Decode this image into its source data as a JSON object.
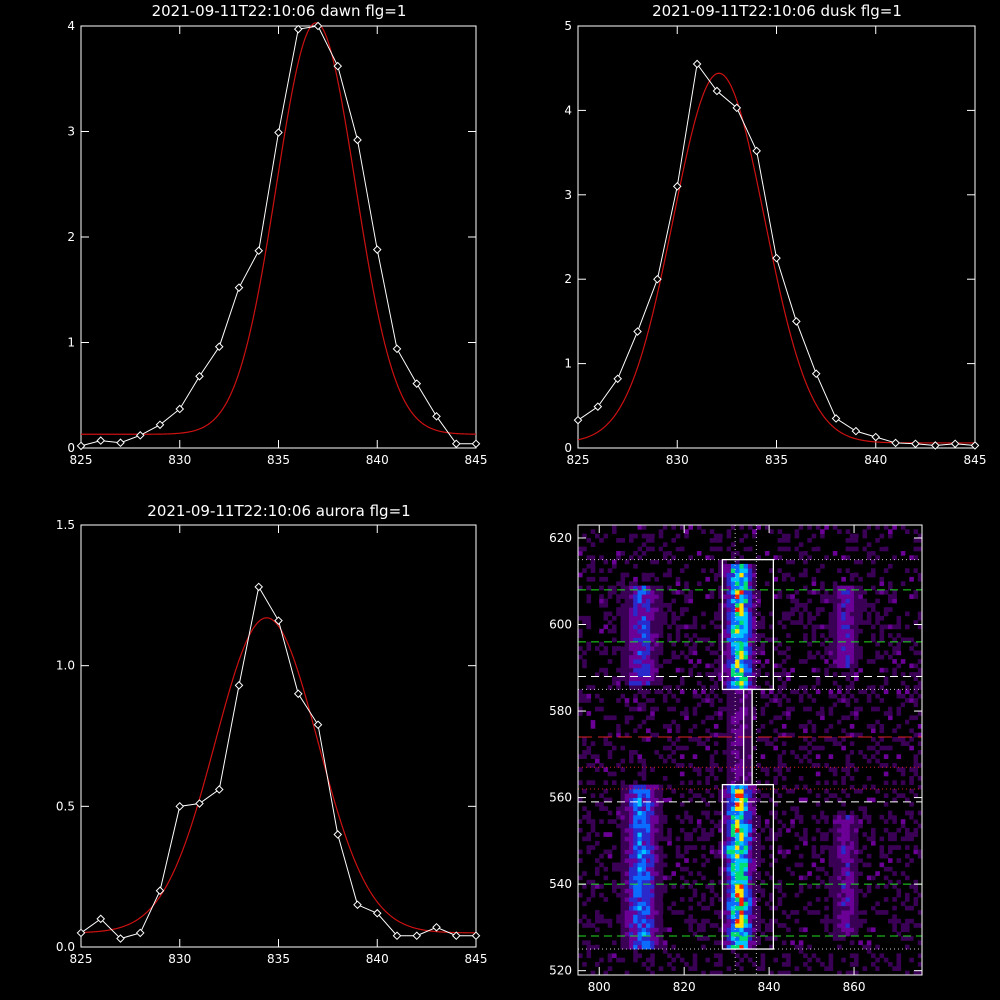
{
  "charts": [
    {
      "type": "line",
      "title": "2021-09-11T22:10:06 dawn flg=1",
      "xlim": [
        825,
        845
      ],
      "ylim": [
        0,
        4
      ],
      "xticks": [
        825,
        830,
        835,
        840,
        845
      ],
      "yticks": [
        0,
        1,
        2,
        3,
        4
      ],
      "ytick_labels": [
        "0",
        "1",
        "2",
        "3",
        "4"
      ],
      "series": [
        {
          "style": "data",
          "color": "#ffffff",
          "x": [
            825,
            826,
            827,
            828,
            829,
            830,
            831,
            832,
            833,
            834,
            835,
            836,
            837,
            838,
            839,
            840,
            841,
            842,
            843,
            844,
            845
          ],
          "y": [
            0.02,
            0.07,
            0.05,
            0.12,
            0.22,
            0.37,
            0.68,
            0.96,
            1.52,
            1.87,
            2.99,
            3.97,
            4.0,
            3.62,
            2.92,
            1.88,
            0.94,
            0.61,
            0.3,
            0.04,
            0.04
          ]
        },
        {
          "style": "fit",
          "color": "#cc1111",
          "model": "gauss",
          "A": 3.9,
          "mu": 836.9,
          "sigma": 2.0,
          "base": 0.13
        }
      ]
    },
    {
      "type": "line",
      "title": "2021-09-11T22:10:06 dusk flg=1",
      "xlim": [
        825,
        845
      ],
      "ylim": [
        0,
        5
      ],
      "xticks": [
        825,
        830,
        835,
        840,
        845
      ],
      "yticks": [
        0,
        1,
        2,
        3,
        4,
        5
      ],
      "ytick_labels": [
        "0",
        "1",
        "2",
        "3",
        "4",
        "5"
      ],
      "series": [
        {
          "style": "data",
          "color": "#ffffff",
          "x": [
            825,
            826,
            827,
            828,
            829,
            830,
            831,
            832,
            833,
            834,
            835,
            836,
            837,
            838,
            839,
            840,
            841,
            842,
            843,
            844,
            845
          ],
          "y": [
            0.33,
            0.49,
            0.82,
            1.38,
            2.0,
            3.1,
            4.55,
            4.23,
            4.03,
            3.52,
            2.25,
            1.5,
            0.88,
            0.35,
            0.2,
            0.13,
            0.06,
            0.05,
            0.03,
            0.05,
            0.03
          ]
        },
        {
          "style": "fit",
          "color": "#cc1111",
          "model": "gauss",
          "A": 4.38,
          "mu": 832.1,
          "sigma": 2.3,
          "base": 0.06
        }
      ]
    },
    {
      "type": "line",
      "title": "2021-09-11T22:10:06 aurora flg=1",
      "xlim": [
        825,
        845
      ],
      "ylim": [
        0,
        1.5
      ],
      "xticks": [
        825,
        830,
        835,
        840,
        845
      ],
      "yticks": [
        0,
        0.5,
        1.0,
        1.5
      ],
      "ytick_labels": [
        "0.0",
        "0.5",
        "1.0",
        "1.5"
      ],
      "series": [
        {
          "style": "data",
          "color": "#ffffff",
          "x": [
            825,
            826,
            827,
            828,
            829,
            830,
            831,
            832,
            833,
            834,
            835,
            836,
            837,
            838,
            839,
            840,
            841,
            842,
            843,
            844,
            845
          ],
          "y": [
            0.05,
            0.1,
            0.03,
            0.05,
            0.2,
            0.5,
            0.51,
            0.56,
            0.93,
            1.28,
            1.16,
            0.9,
            0.79,
            0.4,
            0.15,
            0.12,
            0.04,
            0.04,
            0.07,
            0.04,
            0.04
          ]
        },
        {
          "style": "fit",
          "color": "#cc1111",
          "model": "gauss",
          "A": 1.12,
          "mu": 834.4,
          "sigma": 2.6,
          "base": 0.05
        }
      ]
    },
    {
      "type": "heatmap",
      "xlim": [
        795,
        876
      ],
      "ylim": [
        519,
        623
      ],
      "xticks": [
        800,
        820,
        840,
        860
      ],
      "yticks": [
        520,
        540,
        560,
        580,
        600,
        620
      ],
      "colormap": [
        "#000000",
        "#3a0055",
        "#6a0096",
        "#2a2acc",
        "#0b6cff",
        "#00c4ff",
        "#00e070",
        "#ffe000",
        "#ff2000"
      ],
      "columns": [
        {
          "center": 810,
          "width": 5,
          "ranges": [
            [
              525,
              562,
              0.55
            ],
            [
              586,
              608,
              0.45
            ]
          ]
        },
        {
          "center": 833,
          "width": 4,
          "ranges": [
            [
              525,
              562,
              0.9
            ],
            [
              585,
              613,
              0.85
            ],
            [
              562,
              585,
              0.25
            ]
          ]
        },
        {
          "center": 858,
          "width": 4,
          "ranges": [
            [
              528,
              555,
              0.3
            ],
            [
              590,
              608,
              0.35
            ]
          ]
        }
      ],
      "hot_spots": [
        [
          833,
          538,
          1.0
        ],
        [
          834,
          601,
          0.75
        ],
        [
          831,
          548,
          0.82
        ]
      ],
      "boxes": [
        [
          829,
          585,
          841,
          615
        ],
        [
          829,
          525,
          841,
          563
        ],
        [
          834,
          563,
          836,
          585
        ]
      ],
      "h_lines": [
        {
          "y": 615,
          "color": "#cccccc",
          "dash": "1,3"
        },
        {
          "y": 608,
          "color": "#22dd22",
          "dash": "8,5"
        },
        {
          "y": 596,
          "color": "#22dd22",
          "dash": "8,5"
        },
        {
          "y": 588,
          "color": "#ffffff",
          "dash": "8,5"
        },
        {
          "y": 585,
          "color": "#cccccc",
          "dash": "1,3"
        },
        {
          "y": 574,
          "color": "#dd2222",
          "dash": "14,6"
        },
        {
          "y": 567,
          "color": "#dd2222",
          "dash": "1,3"
        },
        {
          "y": 562,
          "color": "#dd2222",
          "dash": "1,3"
        },
        {
          "y": 559,
          "color": "#ffffff",
          "dash": "8,5"
        },
        {
          "y": 540,
          "color": "#22dd22",
          "dash": "8,5"
        },
        {
          "y": 528,
          "color": "#22dd22",
          "dash": "8,5"
        },
        {
          "y": 525,
          "color": "#cccccc",
          "dash": "1,3"
        }
      ],
      "v_lines": [
        {
          "x": 832,
          "color": "#cccccc",
          "dash": "1,3"
        },
        {
          "x": 837,
          "color": "#cccccc",
          "dash": "1,3"
        }
      ]
    }
  ]
}
